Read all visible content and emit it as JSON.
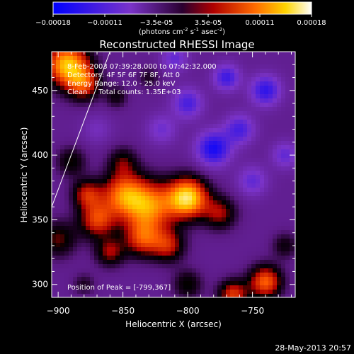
{
  "chart_data": {
    "type": "heatmap",
    "title": "Reconstructed RHESSI Image",
    "xlabel": "Heliocentric X (arcsec)",
    "ylabel": "Heliocentric Y (arcsec)",
    "xlim": [
      -905,
      -717
    ],
    "ylim": [
      290,
      480
    ],
    "xticks": [
      -900,
      -850,
      -800,
      -750
    ],
    "yticks": [
      300,
      350,
      400,
      450
    ],
    "colorbar": {
      "ticks": [
        "-0.00018",
        "-0.00011",
        "-3.5e-05",
        "3.5e-05",
        "0.00011",
        "0.00018"
      ],
      "label_prefix": "(photons cm",
      "label_exp1": "-2",
      "label_mid": " s",
      "label_exp2": "-1",
      "label_mid2": " asec",
      "label_exp3": "-2",
      "label_suffix": ")",
      "range": [
        -0.00018,
        0.00018
      ]
    },
    "annotations": [
      "8-Feb-2003 07:39:28.000 to 07:42:32.000",
      "Detectors: 4F 5F 6F 7F 8F, Att 0",
      "Energy Range: 12.0 - 25.0 keV",
      "Clean     Total counts: 1.35E+03"
    ],
    "peak_text": "Position of Peak = [-799,367]",
    "limb_line": [
      [
        -905,
        360
      ],
      [
        -860,
        480
      ]
    ],
    "sources": [
      {
        "x": -800,
        "y": 367,
        "amp": 0.000185,
        "sigma": 11
      },
      {
        "x": -830,
        "y": 360,
        "amp": 0.00014,
        "sigma": 14
      },
      {
        "x": -850,
        "y": 370,
        "amp": 0.00012,
        "sigma": 12
      },
      {
        "x": -870,
        "y": 350,
        "amp": 0.00011,
        "sigma": 10
      },
      {
        "x": -878,
        "y": 370,
        "amp": 9e-05,
        "sigma": 8
      },
      {
        "x": -835,
        "y": 335,
        "amp": 0.0001,
        "sigma": 10
      },
      {
        "x": -815,
        "y": 330,
        "amp": 9e-05,
        "sigma": 9
      },
      {
        "x": -860,
        "y": 325,
        "amp": 8e-05,
        "sigma": 8
      },
      {
        "x": -900,
        "y": 335,
        "amp": 7e-05,
        "sigma": 10
      },
      {
        "x": -890,
        "y": 395,
        "amp": 6e-05,
        "sigma": 8
      },
      {
        "x": -850,
        "y": 395,
        "amp": 6e-05,
        "sigma": 8
      },
      {
        "x": -775,
        "y": 355,
        "amp": 8e-05,
        "sigma": 9
      },
      {
        "x": -893,
        "y": 470,
        "amp": 0.00017,
        "sigma": 12
      },
      {
        "x": -880,
        "y": 455,
        "amp": 0.0001,
        "sigma": 9
      },
      {
        "x": -740,
        "y": 302,
        "amp": 0.00013,
        "sigma": 9
      },
      {
        "x": -765,
        "y": 292,
        "amp": 0.00011,
        "sigma": 8
      },
      {
        "x": -800,
        "y": 300,
        "amp": 6e-05,
        "sigma": 8
      },
      {
        "x": -725,
        "y": 330,
        "amp": 5e-05,
        "sigma": 7
      },
      {
        "x": -880,
        "y": 300,
        "amp": 4e-05,
        "sigma": 6
      },
      {
        "x": -855,
        "y": 445,
        "amp": 5e-05,
        "sigma": 6
      },
      {
        "x": -830,
        "y": 460,
        "amp": 4e-05,
        "sigma": 6
      },
      {
        "x": -780,
        "y": 405,
        "amp": -0.00012,
        "sigma": 9
      },
      {
        "x": -760,
        "y": 420,
        "amp": -8e-05,
        "sigma": 8
      },
      {
        "x": -740,
        "y": 450,
        "amp": -0.0001,
        "sigma": 8
      },
      {
        "x": -770,
        "y": 460,
        "amp": -9e-05,
        "sigma": 7
      },
      {
        "x": -800,
        "y": 440,
        "amp": -8e-05,
        "sigma": 8
      },
      {
        "x": -750,
        "y": 380,
        "amp": -6e-05,
        "sigma": 8
      },
      {
        "x": -820,
        "y": 420,
        "amp": -5e-05,
        "sigma": 8
      },
      {
        "x": -725,
        "y": 400,
        "amp": -6e-05,
        "sigma": 7
      },
      {
        "x": -870,
        "y": 420,
        "amp": -3e-05,
        "sigma": 8
      },
      {
        "x": -810,
        "y": 475,
        "amp": -6e-05,
        "sigma": 7
      }
    ],
    "background": -4e-05
  },
  "footer": {
    "timestamp": "28-May-2013 20:57"
  }
}
